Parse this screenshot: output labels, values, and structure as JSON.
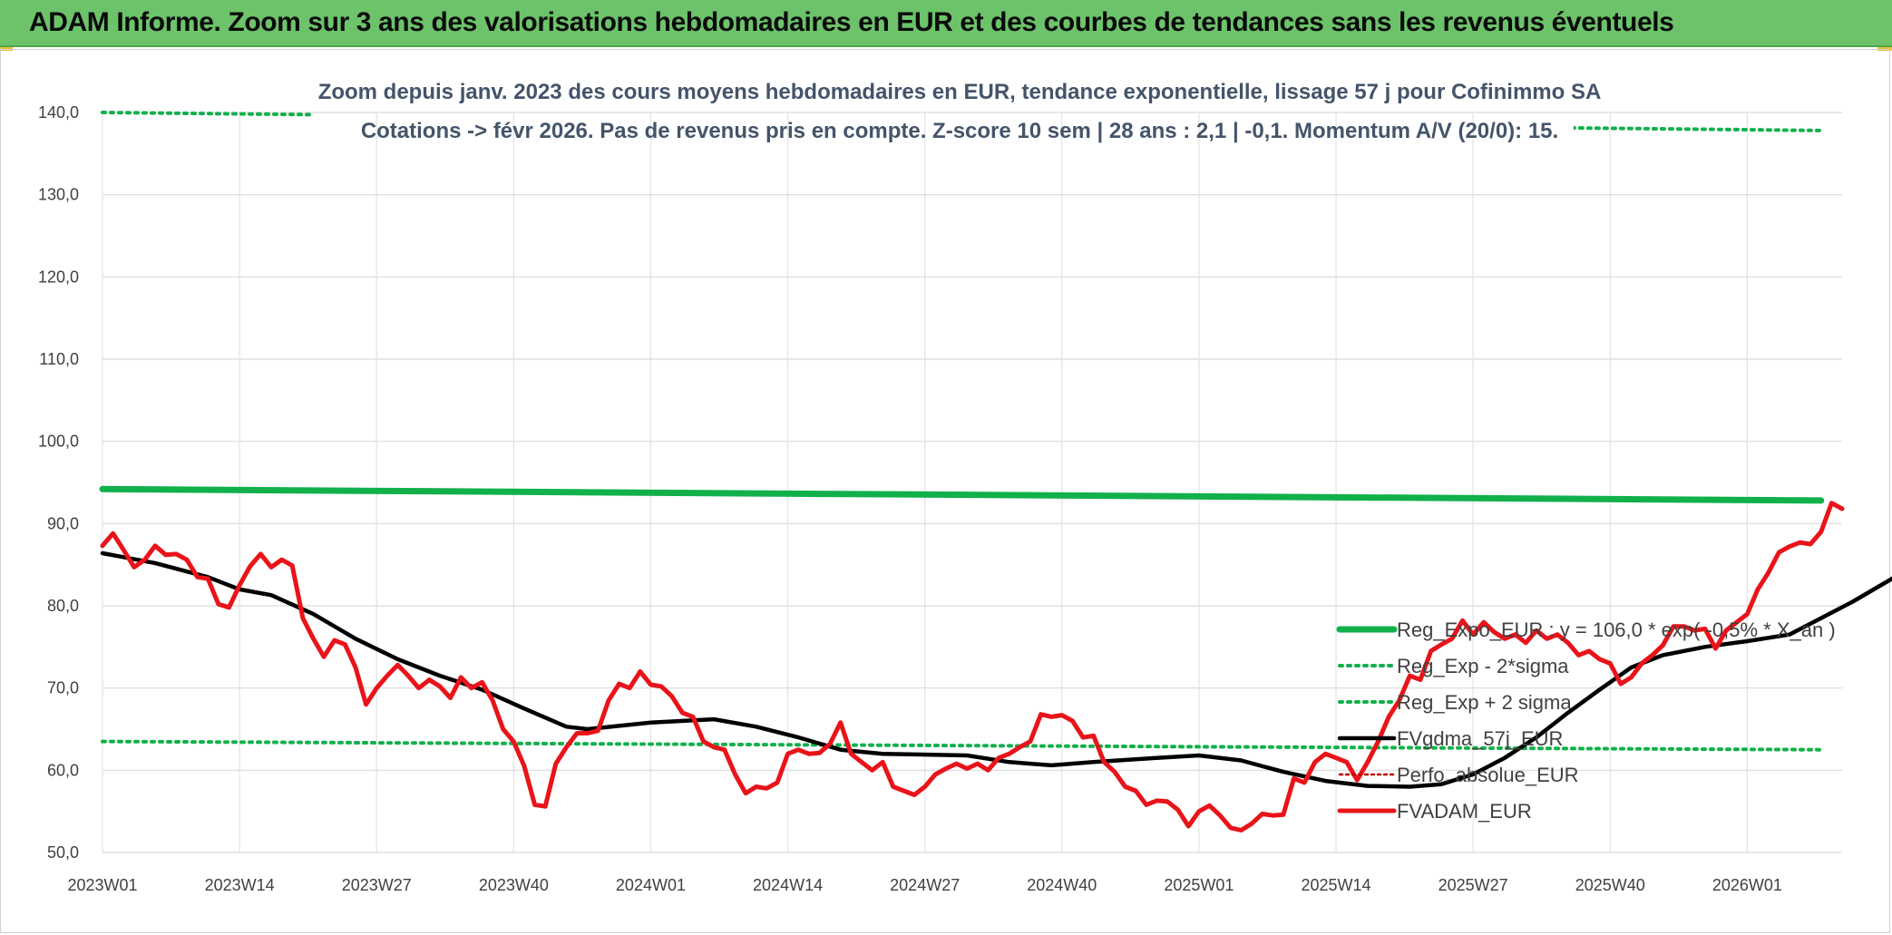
{
  "banner": {
    "title": "ADAM Informe. Zoom sur 3 ans des valorisations hebdomadaires en EUR et des courbes de tendances sans les revenus éventuels"
  },
  "colors": {
    "banner": "#6cc36a",
    "reg": "#11b04b",
    "band": "#11b04b",
    "ma": "#000000",
    "price": "#e8141a",
    "perfo": "#c00000",
    "subtitle": "#44546a"
  },
  "chart_data": {
    "type": "line",
    "title": "Zoom depuis janv. 2023 des cours moyens hebdomadaires en EUR, tendance exponentielle, lissage 57 j pour Cofinimmo SA",
    "subtitle": "Cotations -> févr 2026. Pas de revenus pris en compte. Z-score 10 sem | 28 ans : 2,1 | -0,1. Momentum A/V (20/0): 15.",
    "ylim": [
      50,
      140
    ],
    "y_ticks": [
      "50,0",
      "60,0",
      "70,0",
      "80,0",
      "90,0",
      "100,0",
      "110,0",
      "120,0",
      "130,0",
      "140,0"
    ],
    "x_ticks": [
      "2023W01",
      "2023W14",
      "2023W27",
      "2023W40",
      "2024W01",
      "2024W14",
      "2024W27",
      "2024W40",
      "2025W01",
      "2025W14",
      "2025W27",
      "2025W40",
      "2026W01"
    ],
    "grid": true,
    "legend_position": "right",
    "n_weeks": 164,
    "series": [
      {
        "name": "Reg_Expo_EUR : y = 106,0 * exp( -0,5% *  X_an )",
        "style": "solid-thick",
        "anchors": [
          [
            0,
            94.2
          ],
          [
            163,
            92.8
          ]
        ]
      },
      {
        "name": "Reg_Exp - 2*sigma",
        "style": "dotted",
        "anchors": [
          [
            0,
            63.5
          ],
          [
            163,
            62.5
          ]
        ]
      },
      {
        "name": "Reg_Exp + 2 sigma",
        "style": "dotted",
        "anchors": [
          [
            0,
            140.0
          ],
          [
            163,
            137.8
          ]
        ]
      },
      {
        "name": "FVgdma_57j_EUR",
        "style": "solid",
        "anchors": [
          [
            0,
            86.4
          ],
          [
            5,
            85.2
          ],
          [
            10,
            83.5
          ],
          [
            13,
            82.0
          ],
          [
            16,
            81.3
          ],
          [
            20,
            79.0
          ],
          [
            24,
            76.0
          ],
          [
            28,
            73.5
          ],
          [
            32,
            71.5
          ],
          [
            36,
            69.8
          ],
          [
            40,
            67.5
          ],
          [
            44,
            65.3
          ],
          [
            46,
            65.0
          ],
          [
            52,
            65.8
          ],
          [
            58,
            66.2
          ],
          [
            62,
            65.3
          ],
          [
            66,
            64.0
          ],
          [
            70,
            62.5
          ],
          [
            74,
            62.0
          ],
          [
            82,
            61.8
          ],
          [
            86,
            61.0
          ],
          [
            90,
            60.6
          ],
          [
            94,
            61.0
          ],
          [
            100,
            61.5
          ],
          [
            104,
            61.8
          ],
          [
            108,
            61.2
          ],
          [
            112,
            59.8
          ],
          [
            116,
            58.7
          ],
          [
            120,
            58.1
          ],
          [
            124,
            58.0
          ],
          [
            127,
            58.3
          ],
          [
            130,
            59.5
          ],
          [
            133,
            61.5
          ],
          [
            136,
            64.0
          ],
          [
            139,
            67.0
          ],
          [
            142,
            69.8
          ],
          [
            145,
            72.5
          ],
          [
            148,
            74.0
          ],
          [
            152,
            75.0
          ],
          [
            156,
            75.7
          ],
          [
            160,
            76.5
          ],
          [
            163,
            78.5
          ],
          [
            166,
            80.5
          ],
          [
            170,
            83.5
          ],
          [
            174,
            86.0
          ],
          [
            177,
            88.0
          ]
        ]
      },
      {
        "name": "Perfo. absolue_EUR",
        "style": "dotted-thin",
        "anchors": []
      },
      {
        "name": "FVADAM_EUR",
        "style": "solid-thick",
        "anchors": [
          [
            0,
            87.3
          ],
          [
            1,
            88.8
          ],
          [
            2,
            86.8
          ],
          [
            3,
            84.7
          ],
          [
            4,
            85.6
          ],
          [
            5,
            87.3
          ],
          [
            6,
            86.2
          ],
          [
            7,
            86.3
          ],
          [
            8,
            85.6
          ],
          [
            9,
            83.5
          ],
          [
            10,
            83.3
          ],
          [
            11,
            80.2
          ],
          [
            12,
            79.8
          ],
          [
            13,
            82.5
          ],
          [
            14,
            84.8
          ],
          [
            15,
            86.3
          ],
          [
            16,
            84.7
          ],
          [
            17,
            85.6
          ],
          [
            18,
            84.9
          ],
          [
            19,
            78.5
          ],
          [
            20,
            76.0
          ],
          [
            21,
            73.8
          ],
          [
            22,
            75.8
          ],
          [
            23,
            75.3
          ],
          [
            24,
            72.5
          ],
          [
            25,
            68.0
          ],
          [
            26,
            70.0
          ],
          [
            27,
            71.5
          ],
          [
            28,
            72.8
          ],
          [
            29,
            71.5
          ],
          [
            30,
            70.0
          ],
          [
            31,
            71.0
          ],
          [
            32,
            70.2
          ],
          [
            33,
            68.8
          ],
          [
            34,
            71.3
          ],
          [
            35,
            70.0
          ],
          [
            36,
            70.7
          ],
          [
            37,
            68.5
          ],
          [
            38,
            65.0
          ],
          [
            39,
            63.5
          ],
          [
            40,
            60.5
          ],
          [
            41,
            55.8
          ],
          [
            42,
            55.6
          ],
          [
            43,
            60.8
          ],
          [
            44,
            62.8
          ],
          [
            45,
            64.5
          ],
          [
            46,
            64.5
          ],
          [
            47,
            64.8
          ],
          [
            48,
            68.5
          ],
          [
            49,
            70.5
          ],
          [
            50,
            70.0
          ],
          [
            51,
            72.0
          ],
          [
            52,
            70.4
          ],
          [
            53,
            70.2
          ],
          [
            54,
            69.0
          ],
          [
            55,
            67.0
          ],
          [
            56,
            66.5
          ],
          [
            57,
            63.5
          ],
          [
            58,
            62.8
          ],
          [
            59,
            62.5
          ],
          [
            60,
            59.5
          ],
          [
            61,
            57.2
          ],
          [
            62,
            58.0
          ],
          [
            63,
            57.8
          ],
          [
            64,
            58.5
          ],
          [
            65,
            62.0
          ],
          [
            66,
            62.5
          ],
          [
            67,
            62.0
          ],
          [
            68,
            62.1
          ],
          [
            69,
            63.2
          ],
          [
            70,
            65.8
          ],
          [
            71,
            62.0
          ],
          [
            72,
            61.0
          ],
          [
            73,
            60.0
          ],
          [
            74,
            61.0
          ],
          [
            75,
            58.0
          ],
          [
            76,
            57.5
          ],
          [
            77,
            57.0
          ],
          [
            78,
            58.0
          ],
          [
            79,
            59.5
          ],
          [
            80,
            60.2
          ],
          [
            81,
            60.8
          ],
          [
            82,
            60.2
          ],
          [
            83,
            60.8
          ],
          [
            84,
            60.0
          ],
          [
            85,
            61.5
          ],
          [
            86,
            62.0
          ],
          [
            87,
            62.8
          ],
          [
            88,
            63.5
          ],
          [
            89,
            66.8
          ],
          [
            90,
            66.5
          ],
          [
            91,
            66.7
          ],
          [
            92,
            66.0
          ],
          [
            93,
            64.0
          ],
          [
            94,
            64.2
          ],
          [
            95,
            61.0
          ],
          [
            96,
            59.8
          ],
          [
            97,
            58.0
          ],
          [
            98,
            57.5
          ],
          [
            99,
            55.8
          ],
          [
            100,
            56.3
          ],
          [
            101,
            56.2
          ],
          [
            102,
            55.2
          ],
          [
            103,
            53.2
          ],
          [
            104,
            55.0
          ],
          [
            105,
            55.7
          ],
          [
            106,
            54.5
          ],
          [
            107,
            53.0
          ],
          [
            108,
            52.7
          ],
          [
            109,
            53.5
          ],
          [
            110,
            54.7
          ],
          [
            111,
            54.5
          ],
          [
            112,
            54.6
          ],
          [
            113,
            59.0
          ],
          [
            114,
            58.5
          ],
          [
            115,
            61.0
          ],
          [
            116,
            62.0
          ],
          [
            117,
            61.5
          ],
          [
            118,
            61.0
          ],
          [
            119,
            58.8
          ],
          [
            120,
            61.0
          ],
          [
            121,
            63.5
          ],
          [
            122,
            66.5
          ],
          [
            123,
            68.5
          ],
          [
            124,
            71.5
          ],
          [
            125,
            71.0
          ],
          [
            126,
            74.5
          ],
          [
            127,
            75.3
          ],
          [
            128,
            76.0
          ],
          [
            129,
            78.2
          ],
          [
            130,
            76.5
          ],
          [
            131,
            78.0
          ],
          [
            132,
            76.8
          ],
          [
            133,
            76.0
          ],
          [
            134,
            76.5
          ],
          [
            135,
            75.5
          ],
          [
            136,
            77.0
          ],
          [
            137,
            76.0
          ],
          [
            138,
            76.5
          ],
          [
            139,
            75.5
          ],
          [
            140,
            74.0
          ],
          [
            141,
            74.5
          ],
          [
            142,
            73.5
          ],
          [
            143,
            73.0
          ],
          [
            144,
            70.5
          ],
          [
            145,
            71.3
          ],
          [
            146,
            73.0
          ],
          [
            147,
            74.0
          ],
          [
            148,
            75.2
          ],
          [
            149,
            77.5
          ],
          [
            150,
            77.5
          ],
          [
            151,
            77.0
          ],
          [
            152,
            77.2
          ],
          [
            153,
            74.8
          ],
          [
            154,
            77.0
          ],
          [
            155,
            78.0
          ],
          [
            156,
            79.0
          ],
          [
            157,
            82.0
          ],
          [
            158,
            84.0
          ],
          [
            159,
            86.5
          ],
          [
            160,
            87.2
          ],
          [
            161,
            87.7
          ],
          [
            162,
            87.5
          ],
          [
            163,
            89.0
          ],
          [
            164,
            92.5
          ],
          [
            165,
            91.8
          ]
        ]
      }
    ]
  }
}
